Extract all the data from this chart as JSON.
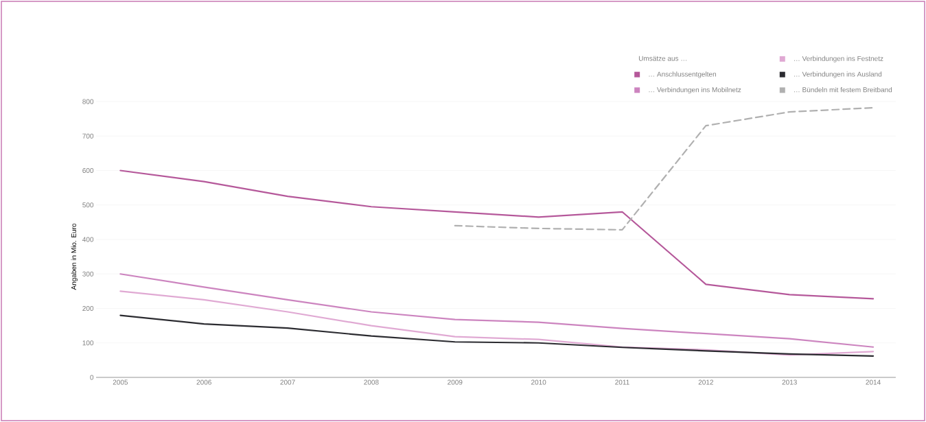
{
  "chart_data": {
    "type": "line",
    "ylabel": "Angaben in Mio. Euro",
    "legend_title": "Umsätze aus …",
    "categories": [
      "2005",
      "2006",
      "2007",
      "2008",
      "2009",
      "2010",
      "2011",
      "2012",
      "2013",
      "2014"
    ],
    "series": [
      {
        "name": "… Anschlussentgelten",
        "color": "#b5589a",
        "values": [
          600,
          568,
          525,
          495,
          480,
          465,
          480,
          270,
          240,
          228
        ]
      },
      {
        "name": "… Verbindungen ins Mobilnetz",
        "color": "#cc84bf",
        "values": [
          300,
          262,
          225,
          190,
          168,
          160,
          142,
          127,
          112,
          88
        ]
      },
      {
        "name": "… Verbindungen ins Festnetz",
        "color": "#e0a9d3",
        "values": [
          250,
          225,
          190,
          150,
          118,
          110,
          88,
          80,
          65,
          75
        ]
      },
      {
        "name": "… Verbindungen ins Ausland",
        "color": "#2b2b30",
        "values": [
          180,
          155,
          143,
          120,
          103,
          100,
          87,
          77,
          68,
          62
        ]
      },
      {
        "name": "… Bündeln mit festem Breitband",
        "color": "#b0b0b0",
        "line_style": "dashed",
        "values": [
          null,
          null,
          null,
          null,
          440,
          432,
          428,
          730,
          770,
          782
        ]
      }
    ],
    "ylim": [
      0,
      800
    ],
    "yticks": [
      0,
      100,
      200,
      300,
      400,
      500,
      600,
      700,
      800
    ],
    "grid": "y",
    "legend": "top right",
    "marker": "none",
    "line_style": "solid"
  }
}
